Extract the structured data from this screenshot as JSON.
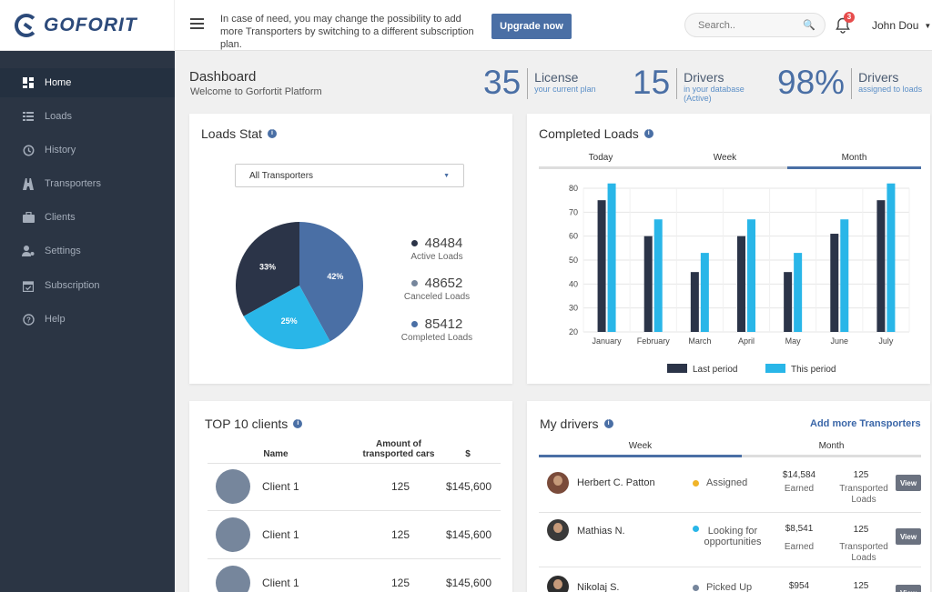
{
  "brand": {
    "logo_text_a": "GO",
    "logo_text_b": "FORIT"
  },
  "header": {
    "notice": "In case of need, you may change the possibility to add more Transporters by switching to a different subscription plan.",
    "upgrade_label": "Upgrade now",
    "search_placeholder": "Search..",
    "notification_count": "3",
    "user_name": "John Dou"
  },
  "sidebar": {
    "items": [
      {
        "label": "Home",
        "icon": "grid-icon",
        "active": true
      },
      {
        "label": "Loads",
        "icon": "list-icon"
      },
      {
        "label": "History",
        "icon": "history-icon"
      },
      {
        "label": "Transporters",
        "icon": "road-icon"
      },
      {
        "label": "Clients",
        "icon": "briefcase-icon"
      },
      {
        "label": "Settings",
        "icon": "user-settings-icon"
      },
      {
        "label": "Subscription",
        "icon": "calendar-icon"
      },
      {
        "label": "Help",
        "icon": "help-icon"
      }
    ]
  },
  "dashboard": {
    "title": "Dashboard",
    "subtitle": "Welcome to Gorfortit Platform",
    "stats": [
      {
        "value": "35",
        "label": "License",
        "sub": "your current plan"
      },
      {
        "value": "15",
        "label": "Drivers",
        "sub": "in your database (Active)"
      },
      {
        "value": "98%",
        "label": "Drivers",
        "sub": "assigned to loads"
      }
    ]
  },
  "loads_stat": {
    "title": "Loads Stat",
    "select_value": "All Transporters",
    "pie": [
      {
        "label": "33%",
        "value": 33,
        "color": "#2b3448"
      },
      {
        "label": "42%",
        "value": 42,
        "color": "#4a6fa5"
      },
      {
        "label": "25%",
        "value": 25,
        "color": "#29b6e8"
      }
    ],
    "legend": [
      {
        "value": "48484",
        "label": "Active Loads",
        "color": "#2b3448"
      },
      {
        "value": "48652",
        "label": "Canceled Loads",
        "color": "#76869c"
      },
      {
        "value": "85412",
        "label": "Completed Loads",
        "color": "#4a6fa5"
      }
    ]
  },
  "completed_loads": {
    "title": "Completed Loads",
    "tabs": [
      "Today",
      "Week",
      "Month"
    ],
    "active_tab": 2
  },
  "chart_data": {
    "type": "bar",
    "categories": [
      "January",
      "February",
      "March",
      "April",
      "May",
      "June",
      "July"
    ],
    "series": [
      {
        "name": "Last period",
        "values": [
          75,
          60,
          45,
          60,
          45,
          61,
          75
        ],
        "color": "#2b3448"
      },
      {
        "name": "This period",
        "values": [
          82,
          67,
          53,
          67,
          53,
          67,
          82
        ],
        "color": "#29b6e8"
      }
    ],
    "ylim": [
      20,
      80
    ],
    "yticks": [
      20,
      30,
      40,
      50,
      60,
      70,
      80
    ],
    "grid": true,
    "legend_position": "bottom"
  },
  "top_clients": {
    "title": "TOP 10 clients",
    "headers": {
      "name": "Name",
      "amount": "Amount of transported cars",
      "money": "$"
    },
    "rows": [
      {
        "name": "Client 1",
        "amount": "125",
        "money": "$145,600"
      },
      {
        "name": "Client 1",
        "amount": "125",
        "money": "$145,600"
      },
      {
        "name": "Client 1",
        "amount": "125",
        "money": "$145,600"
      }
    ]
  },
  "my_drivers": {
    "title": "My drivers",
    "add_more": "Add more Transporters",
    "tabs": [
      "Week",
      "Month"
    ],
    "active_tab": 0,
    "view_label": "View",
    "earned_label": "Earned",
    "transported_label": "Transported Loads",
    "rows": [
      {
        "name": "Herbert C. Patton",
        "status": "Assigned",
        "status_color": "#f0b429",
        "earned": "$14,584",
        "loads": "125"
      },
      {
        "name": "Mathias N.",
        "status": "Looking for opportunities",
        "status_color": "#29b6e8",
        "earned": "$8,541",
        "loads": "125"
      },
      {
        "name": "Nikolaj S.",
        "status": "Picked Up",
        "status_color": "#76869c",
        "earned": "$954",
        "loads": "125"
      }
    ]
  }
}
